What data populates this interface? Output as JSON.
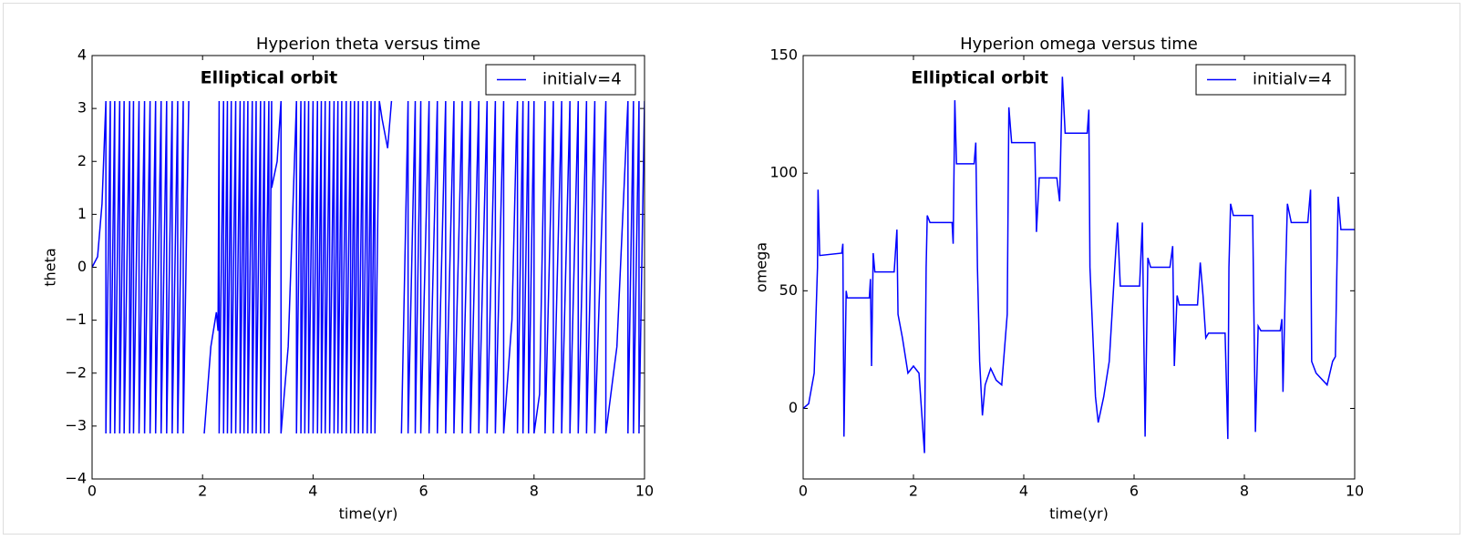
{
  "chart_data": [
    {
      "type": "line",
      "title": "Hyperion theta versus time",
      "xlabel": "time(yr)",
      "ylabel": "theta",
      "annotation": "Elliptical orbit",
      "legend": "upper right",
      "xlim": [
        0,
        10
      ],
      "xticks": [
        0,
        2,
        4,
        6,
        8,
        10
      ],
      "ylim": [
        -4,
        4
      ],
      "yticks": [
        {
          "value": -4,
          "label": "−4"
        },
        {
          "value": -3,
          "label": "−3"
        },
        {
          "value": -2,
          "label": "−2"
        },
        {
          "value": -1,
          "label": "−1"
        },
        0,
        1,
        2,
        3,
        4
      ],
      "x": [
        0,
        0.1,
        0.18,
        0.25,
        0.25,
        0.33,
        0.33,
        0.41,
        0.41,
        0.5,
        0.5,
        0.58,
        0.58,
        0.68,
        0.68,
        0.75,
        0.75,
        0.85,
        0.85,
        0.95,
        0.95,
        1.05,
        1.05,
        1.15,
        1.15,
        1.25,
        1.25,
        1.35,
        1.35,
        1.45,
        1.45,
        1.55,
        1.55,
        1.65,
        1.65,
        1.75,
        1.85,
        2.03,
        2.15,
        2.25,
        2.28,
        2.3,
        2.3,
        2.38,
        2.38,
        2.45,
        2.45,
        2.52,
        2.52,
        2.6,
        2.6,
        2.68,
        2.68,
        2.75,
        2.75,
        2.82,
        2.82,
        2.9,
        2.9,
        2.97,
        2.97,
        3.05,
        3.05,
        3.12,
        3.12,
        3.2,
        3.2,
        3.25,
        3.25,
        3.35,
        3.42,
        3.42,
        3.55,
        3.7,
        3.7,
        3.78,
        3.78,
        3.85,
        3.85,
        3.92,
        3.92,
        4.0,
        4.0,
        4.08,
        4.08,
        4.15,
        4.15,
        4.22,
        4.22,
        4.3,
        4.3,
        4.38,
        4.38,
        4.45,
        4.45,
        4.52,
        4.52,
        4.6,
        4.6,
        4.68,
        4.68,
        4.75,
        4.75,
        4.82,
        4.82,
        4.9,
        4.9,
        4.98,
        4.98,
        5.05,
        5.05,
        5.12,
        5.12,
        5.2,
        5.25,
        5.35,
        5.42,
        5.5,
        5.6,
        5.72,
        5.72,
        5.85,
        5.85,
        5.95,
        5.95,
        6.1,
        6.1,
        6.25,
        6.25,
        6.4,
        6.4,
        6.55,
        6.55,
        6.7,
        6.7,
        6.85,
        6.85,
        7.0,
        7.0,
        7.15,
        7.15,
        7.3,
        7.3,
        7.45,
        7.45,
        7.6,
        7.68,
        7.7,
        7.7,
        7.8,
        7.8,
        7.9,
        7.9,
        8.0,
        8.0,
        8.1,
        8.2,
        8.2,
        8.35,
        8.35,
        8.5,
        8.5,
        8.65,
        8.65,
        8.8,
        8.8,
        8.95,
        8.95,
        9.1,
        9.1,
        9.3,
        9.3,
        9.5,
        9.7,
        9.7,
        9.8,
        9.8,
        9.9,
        9.9,
        10.0
      ],
      "series": [
        {
          "name": "initialv=4",
          "color": "#0000ff",
          "values": [
            0,
            0.2,
            1.2,
            3.14,
            -3.14,
            3.14,
            -3.14,
            3.14,
            -3.14,
            3.14,
            -3.14,
            3.14,
            -3.14,
            3.14,
            -3.14,
            3.14,
            -3.14,
            3.14,
            -3.14,
            3.14,
            -3.14,
            3.14,
            -3.14,
            3.14,
            -3.14,
            3.14,
            -3.14,
            3.14,
            -3.14,
            3.14,
            -3.14,
            3.14,
            -3.14,
            3.14,
            -3.14,
            3.14,
            null,
            -3.14,
            -1.5,
            -0.85,
            -1.2,
            3.14,
            -3.14,
            3.14,
            -3.14,
            3.14,
            -3.14,
            3.14,
            -3.14,
            3.14,
            -3.14,
            3.14,
            -3.14,
            3.14,
            -3.14,
            3.14,
            -3.14,
            3.14,
            -3.14,
            3.14,
            -3.14,
            3.14,
            -3.14,
            3.14,
            -3.14,
            3.14,
            -3.14,
            3.14,
            1.5,
            2.0,
            3.14,
            -3.14,
            -1.5,
            3.14,
            -3.14,
            3.14,
            -3.14,
            3.14,
            -3.14,
            3.14,
            -3.14,
            3.14,
            -3.14,
            3.14,
            -3.14,
            3.14,
            -3.14,
            3.14,
            -3.14,
            3.14,
            -3.14,
            3.14,
            -3.14,
            3.14,
            -3.14,
            3.14,
            -3.14,
            3.14,
            -3.14,
            3.14,
            -3.14,
            3.14,
            -3.14,
            3.14,
            -3.14,
            3.14,
            -3.14,
            3.14,
            -3.14,
            3.14,
            -3.14,
            3.14,
            -3.14,
            3.14,
            2.8,
            2.25,
            3.14,
            null,
            -3.14,
            3.14,
            -3.14,
            3.14,
            -3.14,
            3.14,
            -3.14,
            3.14,
            -3.14,
            3.14,
            -3.14,
            3.14,
            -3.14,
            3.14,
            -3.14,
            3.14,
            -3.14,
            3.14,
            -3.14,
            3.14,
            -3.14,
            3.14,
            -3.14,
            3.14,
            -3.14,
            3.14,
            -3.14,
            -1,
            2.5,
            3.14,
            -3.14,
            3.14,
            -3.14,
            3.14,
            -3.14,
            3.14,
            -3.14,
            -2.4,
            3.14,
            -3.14,
            3.14,
            -3.14,
            3.14,
            -3.14,
            3.14,
            -3.14,
            3.14,
            -3.14,
            3.14,
            -3.14,
            3.14,
            -3.14,
            3.14,
            -3.14,
            -1.5,
            3.14,
            -3.14,
            3.14,
            -3.14,
            3.14,
            -3.14,
            3.14
          ]
        }
      ]
    },
    {
      "type": "line",
      "title": "Hyperion omega versus time",
      "xlabel": "time(yr)",
      "ylabel": "omega",
      "annotation": "Elliptical orbit",
      "legend": "upper right",
      "xlim": [
        0,
        10
      ],
      "xticks": [
        0,
        2,
        4,
        6,
        8,
        10
      ],
      "ylim": [
        -30,
        150
      ],
      "yticks": [
        0,
        50,
        100,
        150
      ],
      "x": [
        0,
        0.1,
        0.2,
        0.26,
        0.27,
        0.3,
        0.7,
        0.72,
        0.74,
        0.78,
        0.8,
        1.2,
        1.22,
        1.24,
        1.27,
        1.3,
        1.65,
        1.7,
        1.72,
        1.8,
        1.9,
        2.0,
        2.1,
        2.2,
        2.23,
        2.25,
        2.3,
        2.7,
        2.72,
        2.75,
        2.78,
        3.1,
        3.13,
        3.16,
        3.2,
        3.25,
        3.3,
        3.4,
        3.5,
        3.6,
        3.7,
        3.73,
        3.78,
        4.2,
        4.23,
        4.28,
        4.6,
        4.65,
        4.7,
        4.75,
        5.15,
        5.18,
        5.2,
        5.3,
        5.35,
        5.45,
        5.55,
        5.65,
        5.7,
        5.75,
        6.1,
        6.15,
        6.2,
        6.25,
        6.3,
        6.65,
        6.7,
        6.73,
        6.78,
        6.82,
        7.15,
        7.2,
        7.25,
        7.3,
        7.35,
        7.65,
        7.7,
        7.72,
        7.75,
        7.8,
        8.15,
        8.2,
        8.25,
        8.3,
        8.65,
        8.68,
        8.7,
        8.75,
        8.78,
        8.85,
        9.15,
        9.2,
        9.22,
        9.3,
        9.5,
        9.6,
        9.65,
        9.7,
        9.75,
        10
      ],
      "series": [
        {
          "name": "initialv=4",
          "color": "#0000ff",
          "values": [
            0,
            2,
            15,
            60,
            93,
            65,
            66,
            70,
            -12,
            50,
            47,
            47,
            55,
            18,
            66,
            58,
            58,
            76,
            40,
            30,
            15,
            18,
            15,
            -19,
            60,
            82,
            79,
            79,
            70,
            131,
            104,
            104,
            113,
            60,
            20,
            -3,
            10,
            17,
            12,
            10,
            40,
            128,
            113,
            113,
            75,
            98,
            98,
            88,
            141,
            117,
            117,
            127,
            60,
            5,
            -6,
            5,
            20,
            60,
            79,
            52,
            52,
            79,
            -12,
            64,
            60,
            60,
            69,
            18,
            48,
            44,
            44,
            62,
            48,
            30,
            32,
            32,
            -13,
            60,
            87,
            82,
            82,
            -10,
            35,
            33,
            33,
            38,
            7,
            60,
            87,
            79,
            79,
            93,
            20,
            15,
            10,
            20,
            22,
            90,
            76,
            76
          ]
        }
      ]
    }
  ]
}
